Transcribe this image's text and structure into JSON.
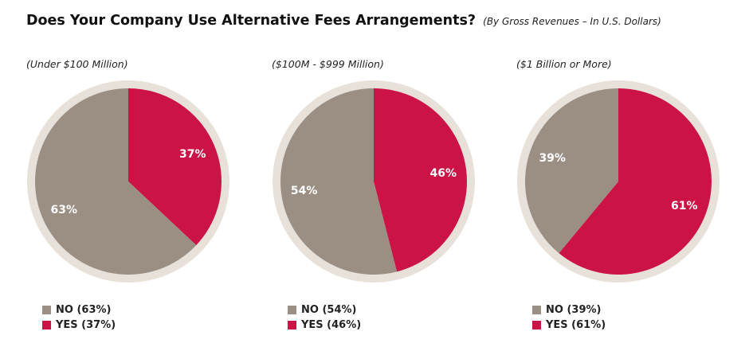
{
  "title": "Does Your Company Use Alternative Fees Arrangements?",
  "subtitle": "(By Gross Revenues – In U.S. Dollars)",
  "colors": {
    "no": "#9b8f84",
    "yes": "#cc1345",
    "ring": "#e7e1da"
  },
  "chart_data": [
    {
      "type": "pie",
      "label": "(Under $100 Million)",
      "slices": [
        {
          "name": "NO",
          "value": 63,
          "data_label": "63%",
          "legend": "NO (63%)"
        },
        {
          "name": "YES",
          "value": 37,
          "data_label": "37%",
          "legend": "YES (37%)"
        }
      ]
    },
    {
      "type": "pie",
      "label": "($100M - $999 Million)",
      "slices": [
        {
          "name": "NO",
          "value": 54,
          "data_label": "54%",
          "legend": "NO (54%)"
        },
        {
          "name": "YES",
          "value": 46,
          "data_label": "46%",
          "legend": "YES (46%)"
        }
      ]
    },
    {
      "type": "pie",
      "label": "($1 Billion or More)",
      "slices": [
        {
          "name": "NO",
          "value": 39,
          "data_label": "39%",
          "legend": "NO (39%)"
        },
        {
          "name": "YES",
          "value": 61,
          "data_label": "61%",
          "legend": "YES (61%)"
        }
      ]
    }
  ]
}
